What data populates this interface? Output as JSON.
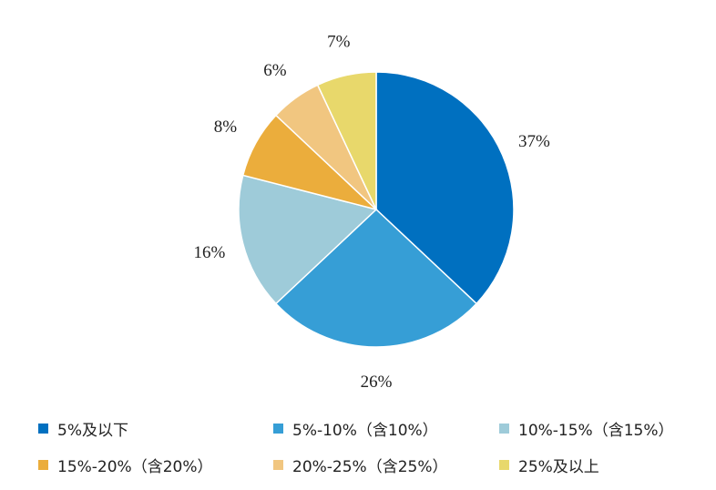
{
  "chart_data": {
    "type": "pie",
    "title": "",
    "slices": [
      {
        "name": "5%及以下",
        "value": 37,
        "label": "37%",
        "color": "#0070c0"
      },
      {
        "name": "5%-10%（含10%）",
        "value": 26,
        "label": "26%",
        "color": "#369ed6"
      },
      {
        "name": "10%-15%（含15%）",
        "value": 16,
        "label": "16%",
        "color": "#9ecbd9"
      },
      {
        "name": "15%-20%（含20%）",
        "value": 8,
        "label": "8%",
        "color": "#ebad3c"
      },
      {
        "name": "20%-25%（含25%）",
        "value": 6,
        "label": "6%",
        "color": "#f1c680"
      },
      {
        "name": "25%及以上",
        "value": 7,
        "label": "7%",
        "color": "#e8d86b"
      }
    ],
    "start_angle": "12 o'clock",
    "direction": "clockwise",
    "legend_position": "bottom"
  }
}
